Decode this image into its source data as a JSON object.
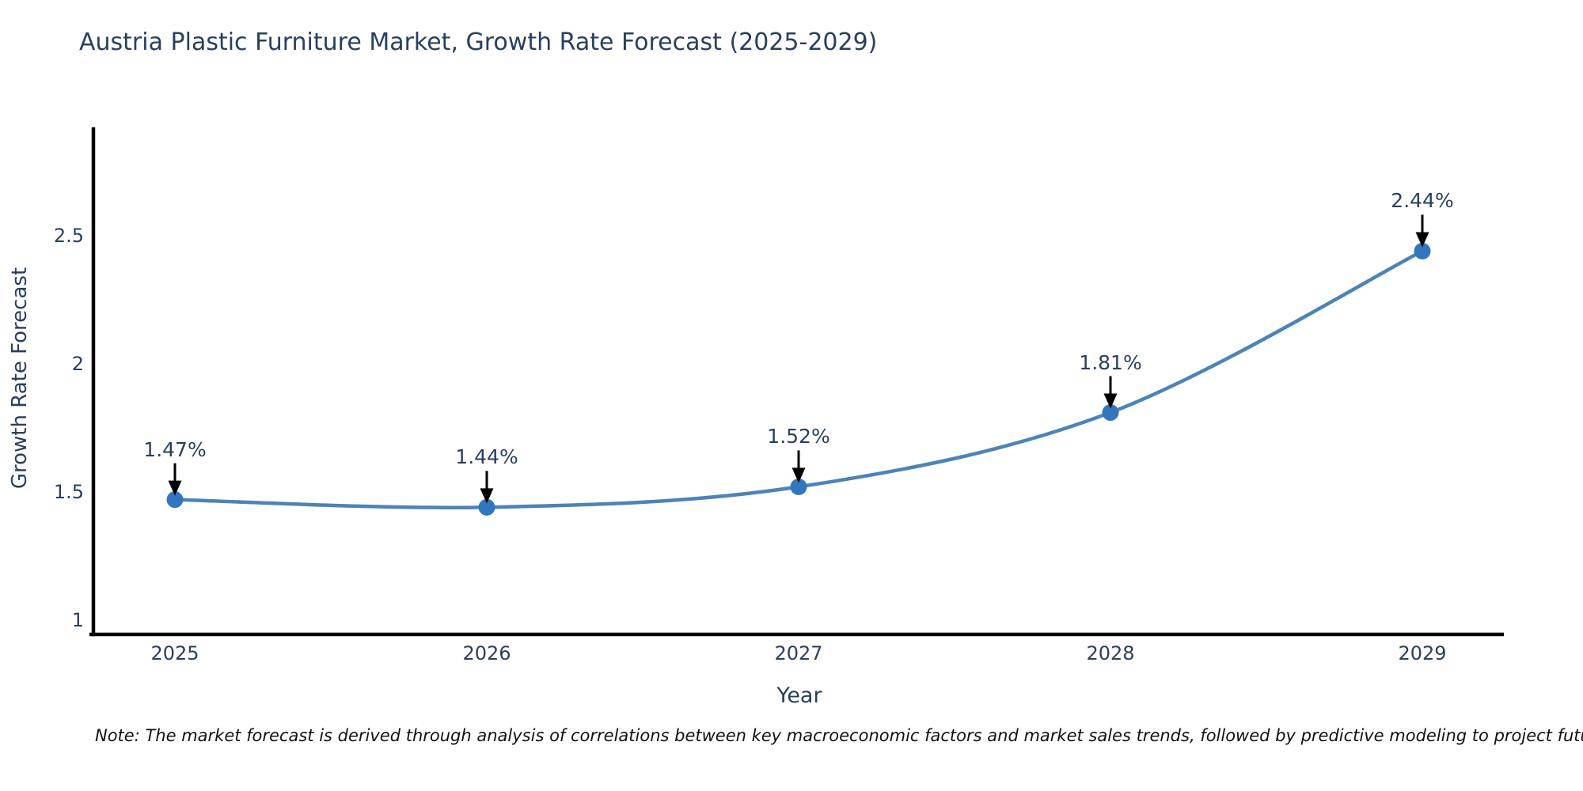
{
  "title": "Austria Plastic Furniture Market, Growth Rate Forecast (2025-2029)",
  "note": "Note: The market forecast is derived through analysis of correlations between key macroeconomic factors and market sales trends, followed by predictive modeling to project future sales",
  "chart_data": {
    "type": "line",
    "title": "Austria Plastic Furniture Market, Growth Rate Forecast (2025-2029)",
    "categories": [
      "2025",
      "2026",
      "2027",
      "2028",
      "2029"
    ],
    "values": [
      1.47,
      1.44,
      1.52,
      1.81,
      2.44
    ],
    "point_labels": [
      "1.47%",
      "1.44%",
      "1.52%",
      "1.81%",
      "2.44%"
    ],
    "series_name": "Growth Rate Forecast",
    "xlabel": "Year",
    "ylabel": "Growth Rate Forecast",
    "ylim": [
      0.944,
      2.923
    ],
    "yticks": [
      1,
      1.5,
      2,
      2.5
    ],
    "ytick_labels": [
      "1",
      "1.5",
      "2",
      "2.5"
    ],
    "grid": false,
    "legend_position": "none",
    "line_shape": "spline",
    "annotations_have_arrows": true,
    "colors": {
      "line": "#4c83b8",
      "marker": "#3376bd",
      "axis": "#000000",
      "text": "#2a3f5f",
      "arrow": "#000000",
      "note_text": "#111111",
      "background": "#ffffff"
    }
  }
}
